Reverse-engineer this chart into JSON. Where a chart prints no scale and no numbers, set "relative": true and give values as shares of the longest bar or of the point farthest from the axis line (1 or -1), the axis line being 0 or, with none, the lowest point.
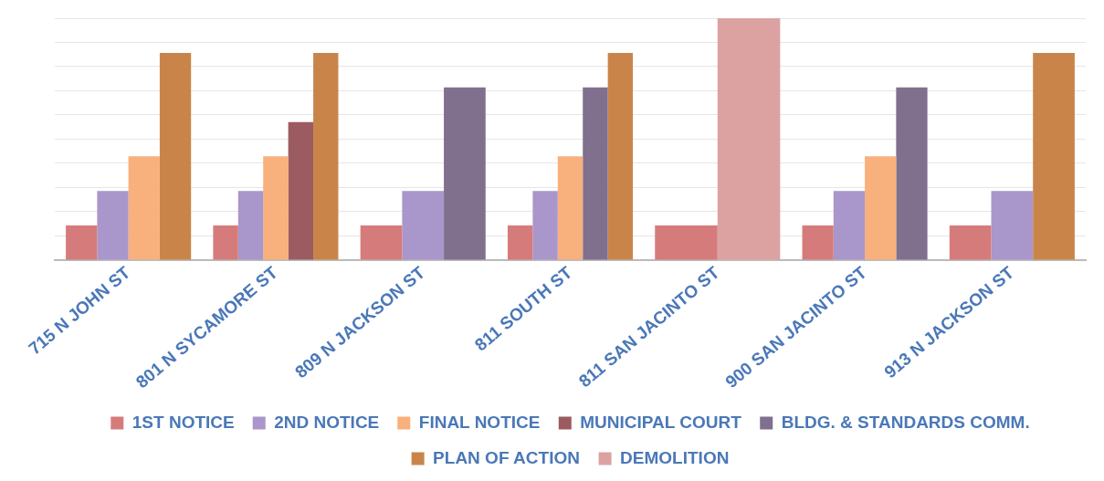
{
  "chart_data": {
    "type": "bar",
    "relative": true,
    "grid": "y",
    "legend": "bottom",
    "categories": [
      "715 N JOHN ST",
      "801 N SYCAMORE ST",
      "809 N JACKSON ST",
      "811 SOUTH ST",
      "811 SAN JACINTO ST",
      "900 SAN JACINTO ST",
      "913 N JACKSON ST"
    ],
    "series": [
      {
        "name": "1ST NOTICE",
        "color": "#d67b7b",
        "values": [
          0.143,
          0.143,
          0.143,
          0.143,
          0.143,
          0.143,
          0.143
        ]
      },
      {
        "name": "2ND NOTICE",
        "color": "#a996ca",
        "values": [
          0.286,
          0.286,
          0.286,
          0.286,
          null,
          0.286,
          0.286
        ]
      },
      {
        "name": "FINAL NOTICE",
        "color": "#f8b07c",
        "values": [
          0.429,
          0.429,
          null,
          0.429,
          null,
          0.429,
          null
        ]
      },
      {
        "name": "MUNICIPAL COURT",
        "color": "#9c5b60",
        "values": [
          null,
          0.571,
          null,
          null,
          null,
          null,
          null
        ]
      },
      {
        "name": "BLDG. & STANDARDS COMM.",
        "color": "#80708e",
        "values": [
          null,
          null,
          0.714,
          0.714,
          null,
          0.714,
          null
        ]
      },
      {
        "name": "PLAN OF ACTION",
        "color": "#c98549",
        "values": [
          0.857,
          0.857,
          null,
          0.857,
          null,
          null,
          0.857
        ]
      },
      {
        "name": "DEMOLITION",
        "color": "#dca2a2",
        "values": [
          null,
          null,
          null,
          null,
          1,
          null,
          null
        ]
      }
    ]
  }
}
